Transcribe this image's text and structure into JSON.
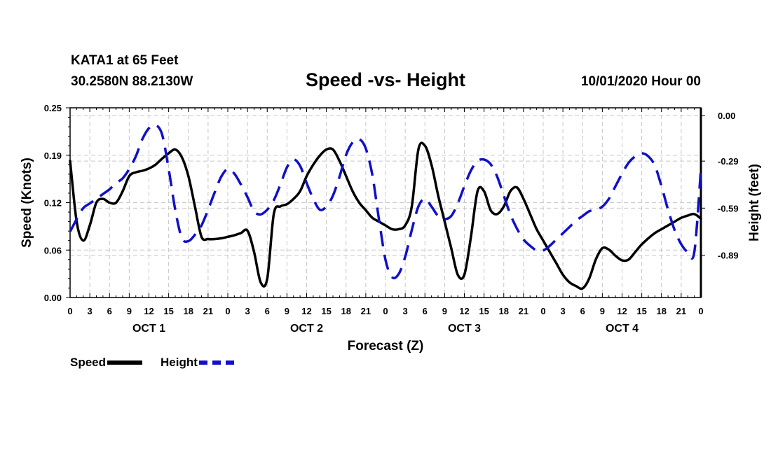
{
  "header": {
    "station": "KATA1 at 65 Feet",
    "coords": "30.2580N 88.2130W",
    "title": "Speed -vs- Height",
    "datetime": "10/01/2020 Hour 00"
  },
  "legend": {
    "speed": "Speed",
    "height": "Height"
  },
  "chart_data": {
    "type": "line",
    "title": "Speed -vs- Height",
    "xlabel": "Forecast (Z)",
    "ylabel_left": "Speed (Knots)",
    "ylabel_right": "Height (feet)",
    "x_tick_labels": [
      "0",
      "3",
      "6",
      "9",
      "12",
      "15",
      "18",
      "21",
      "0",
      "3",
      "6",
      "9",
      "12",
      "15",
      "18",
      "21",
      "0",
      "3",
      "6",
      "9",
      "12",
      "15",
      "18",
      "21",
      "0",
      "3",
      "6",
      "9",
      "12",
      "15",
      "18",
      "21",
      "0"
    ],
    "day_labels": [
      "OCT 1",
      "OCT 2",
      "OCT 3",
      "OCT 4"
    ],
    "xlim_hours": [
      0,
      96
    ],
    "y_left": {
      "ticks": [
        "0.00",
        "0.06",
        "0.12",
        "0.19",
        "0.25"
      ],
      "values": [
        0,
        0.0625,
        0.125,
        0.1875,
        0.25
      ],
      "ylim": [
        0,
        0.25
      ]
    },
    "y_right": {
      "ticks": [
        "0.00",
        "-0.29",
        "-0.59",
        "-0.89"
      ],
      "values": [
        0,
        -0.29,
        -0.59,
        -0.89
      ],
      "ylim": [
        -1.16,
        0.05
      ]
    },
    "grid": true,
    "series": [
      {
        "name": "Speed",
        "axis": "left",
        "color": "#000000",
        "dashed": false,
        "x": [
          0,
          1,
          2,
          3,
          4,
          5,
          6,
          7,
          8,
          9,
          10,
          11,
          12,
          13,
          14,
          15,
          16,
          17,
          18,
          19,
          20,
          21,
          22,
          23,
          24,
          25,
          26,
          27,
          28,
          29,
          30,
          31,
          32,
          33,
          34,
          35,
          36,
          37,
          38,
          39,
          40,
          41,
          42,
          43,
          44,
          45,
          46,
          47,
          48,
          49,
          50,
          51,
          52,
          53,
          54,
          55,
          56,
          57,
          58,
          59,
          60,
          61,
          62,
          63,
          64,
          65,
          66,
          67,
          68,
          69,
          70,
          71,
          72,
          73,
          74,
          75,
          76,
          77,
          78,
          79,
          80,
          81,
          82,
          83,
          84,
          85,
          86,
          87,
          88,
          89,
          90,
          91,
          92,
          93,
          94,
          95,
          96
        ],
        "y": [
          0.18,
          0.1,
          0.075,
          0.095,
          0.125,
          0.13,
          0.125,
          0.125,
          0.14,
          0.16,
          0.165,
          0.167,
          0.17,
          0.175,
          0.183,
          0.19,
          0.195,
          0.185,
          0.16,
          0.12,
          0.08,
          0.077,
          0.077,
          0.078,
          0.08,
          0.082,
          0.085,
          0.088,
          0.06,
          0.02,
          0.025,
          0.11,
          0.12,
          0.123,
          0.13,
          0.14,
          0.16,
          0.175,
          0.187,
          0.195,
          0.195,
          0.18,
          0.16,
          0.14,
          0.125,
          0.115,
          0.105,
          0.1,
          0.095,
          0.09,
          0.09,
          0.095,
          0.12,
          0.195,
          0.2,
          0.175,
          0.135,
          0.1,
          0.065,
          0.03,
          0.03,
          0.08,
          0.14,
          0.14,
          0.115,
          0.11,
          0.12,
          0.14,
          0.145,
          0.13,
          0.11,
          0.09,
          0.075,
          0.06,
          0.045,
          0.03,
          0.02,
          0.015,
          0.012,
          0.025,
          0.05,
          0.065,
          0.063,
          0.055,
          0.049,
          0.05,
          0.06,
          0.07,
          0.078,
          0.085,
          0.09,
          0.095,
          0.1,
          0.105,
          0.108,
          0.11,
          0.104
        ]
      },
      {
        "name": "Height",
        "axis": "right",
        "color": "#1010c8",
        "dashed": true,
        "x": [
          0,
          1,
          2,
          3,
          4,
          5,
          6,
          7,
          8,
          9,
          10,
          11,
          12,
          13,
          14,
          15,
          16,
          17,
          18,
          19,
          20,
          21,
          22,
          23,
          24,
          25,
          26,
          27,
          28,
          29,
          30,
          31,
          32,
          33,
          34,
          35,
          36,
          37,
          38,
          39,
          40,
          41,
          42,
          43,
          44,
          45,
          46,
          47,
          48,
          49,
          50,
          51,
          52,
          53,
          54,
          55,
          56,
          57,
          58,
          59,
          60,
          61,
          62,
          63,
          64,
          65,
          66,
          67,
          68,
          69,
          70,
          71,
          72,
          73,
          74,
          75,
          76,
          77,
          78,
          79,
          80,
          81,
          82,
          83,
          84,
          85,
          86,
          87,
          88,
          89,
          90,
          91,
          92,
          93,
          94,
          95,
          96
        ],
        "y": [
          -0.74,
          -0.66,
          -0.59,
          -0.56,
          -0.53,
          -0.5,
          -0.47,
          -0.43,
          -0.4,
          -0.34,
          -0.26,
          -0.15,
          -0.08,
          -0.06,
          -0.12,
          -0.34,
          -0.6,
          -0.78,
          -0.8,
          -0.76,
          -0.7,
          -0.6,
          -0.49,
          -0.39,
          -0.34,
          -0.37,
          -0.44,
          -0.52,
          -0.61,
          -0.63,
          -0.6,
          -0.54,
          -0.44,
          -0.33,
          -0.28,
          -0.32,
          -0.43,
          -0.53,
          -0.6,
          -0.58,
          -0.51,
          -0.39,
          -0.25,
          -0.17,
          -0.15,
          -0.21,
          -0.38,
          -0.66,
          -0.92,
          -1.03,
          -1.01,
          -0.9,
          -0.73,
          -0.58,
          -0.53,
          -0.58,
          -0.64,
          -0.66,
          -0.64,
          -0.56,
          -0.45,
          -0.35,
          -0.29,
          -0.28,
          -0.31,
          -0.39,
          -0.51,
          -0.63,
          -0.72,
          -0.79,
          -0.83,
          -0.86,
          -0.86,
          -0.83,
          -0.79,
          -0.75,
          -0.71,
          -0.67,
          -0.64,
          -0.61,
          -0.6,
          -0.58,
          -0.53,
          -0.45,
          -0.37,
          -0.3,
          -0.26,
          -0.24,
          -0.26,
          -0.32,
          -0.45,
          -0.6,
          -0.73,
          -0.82,
          -0.87,
          -0.87,
          -0.34
        ]
      }
    ]
  }
}
